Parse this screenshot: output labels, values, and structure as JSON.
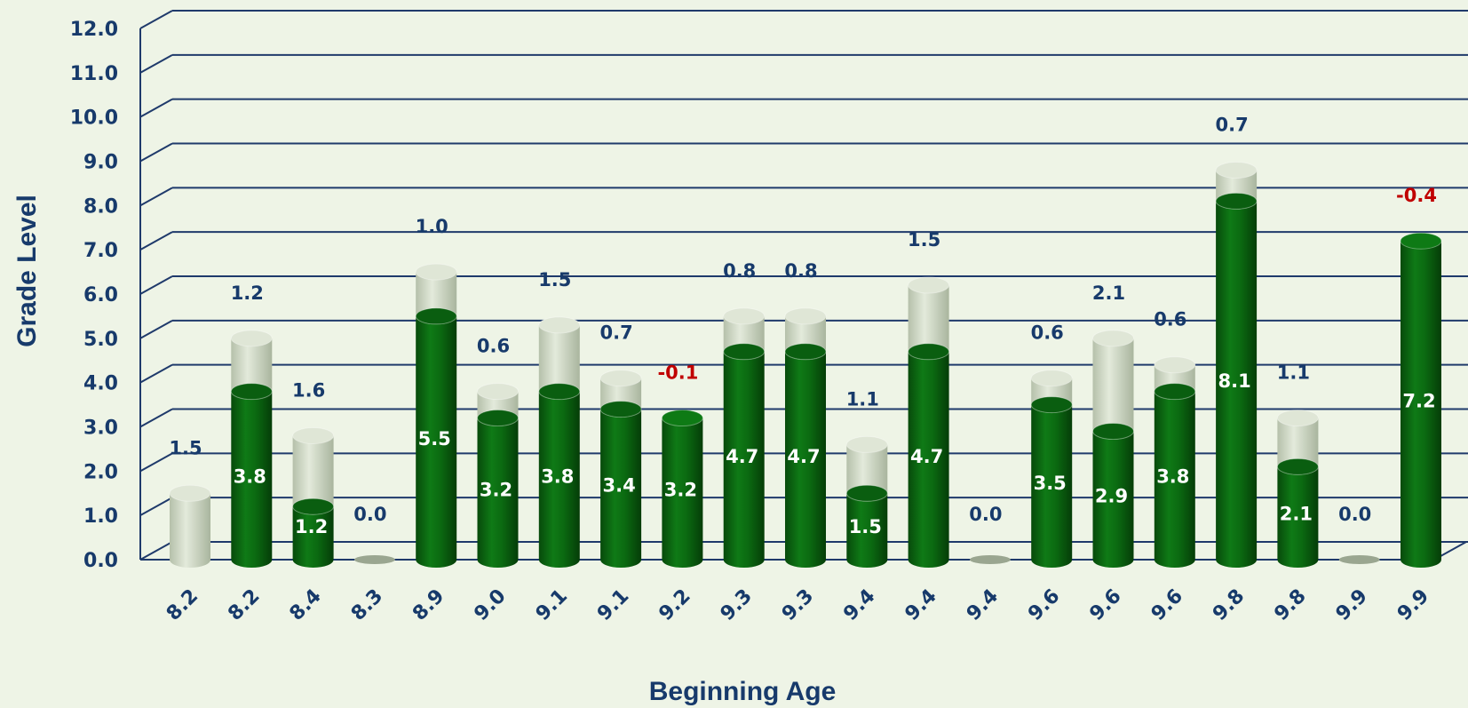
{
  "chart_data": {
    "type": "bar",
    "stacked": true,
    "xlabel": "Beginning Age",
    "ylabel": "Grade Level",
    "ylim": [
      0,
      12
    ],
    "yticks": [
      "0.0",
      "1.0",
      "2.0",
      "3.0",
      "4.0",
      "5.0",
      "6.0",
      "7.0",
      "8.0",
      "9.0",
      "10.0",
      "11.0",
      "12.0"
    ],
    "categories": [
      "8.2",
      "8.2",
      "8.4",
      "8.3",
      "8.9",
      "9.0",
      "9.1",
      "9.1",
      "9.2",
      "9.3",
      "9.3",
      "9.4",
      "9.4",
      "9.4",
      "9.6",
      "9.6",
      "9.6",
      "9.8",
      "9.8",
      "9.9",
      "9.9"
    ],
    "series": [
      {
        "values": [
          0,
          3.8,
          1.2,
          0,
          5.5,
          3.2,
          3.8,
          3.4,
          3.2,
          4.7,
          4.7,
          1.5,
          4.7,
          0,
          3.5,
          2.9,
          3.8,
          8.1,
          2.1,
          0,
          7.2
        ],
        "labels": [
          "",
          "3.8",
          "1.2",
          "",
          "5.5",
          "3.2",
          "3.8",
          "3.4",
          "3.2",
          "4.7",
          "4.7",
          "1.5",
          "4.7",
          "",
          "3.5",
          "2.9",
          "3.8",
          "8.1",
          "2.1",
          "",
          "7.2"
        ]
      },
      {
        "values": [
          1.5,
          1.2,
          1.6,
          0.0,
          1.0,
          0.6,
          1.5,
          0.7,
          -0.1,
          0.8,
          0.8,
          1.1,
          1.5,
          0.0,
          0.6,
          2.1,
          0.6,
          0.7,
          1.1,
          0.0,
          -0.4
        ],
        "labels": [
          "1.5",
          "1.2",
          "1.6",
          "0.0",
          "1.0",
          "0.6",
          "1.5",
          "0.7",
          "-0.1",
          "0.8",
          "0.8",
          "1.1",
          "1.5",
          "0.0",
          "0.6",
          "2.1",
          "0.6",
          "0.7",
          "1.1",
          "0.0",
          "-0.4"
        ]
      }
    ],
    "grid": true,
    "colors": {
      "base": "#0d6b12",
      "gain": "#d2dcc8",
      "grid": "#1f3a6b",
      "text": "#173a6b",
      "negative": "#c00000",
      "background": "#eef4e6"
    }
  }
}
